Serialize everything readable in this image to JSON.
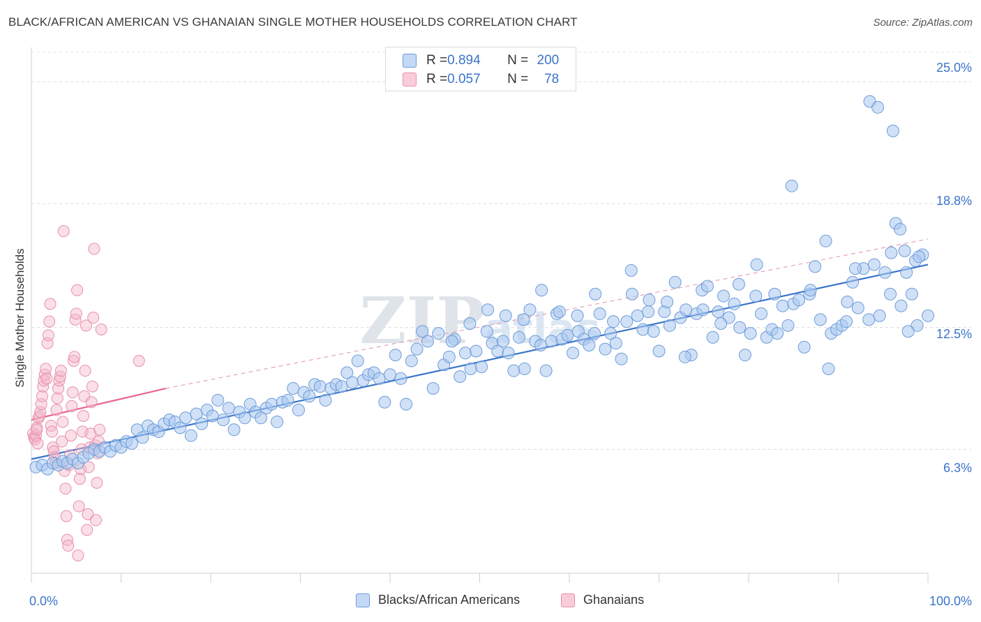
{
  "title": "BLACK/AFRICAN AMERICAN VS GHANAIAN SINGLE MOTHER HOUSEHOLDS CORRELATION CHART",
  "source": "Source: ZipAtlas.com",
  "watermark": "ZIPatlas",
  "legend_top": [
    {
      "r_label": "R = ",
      "r_value": "0.894",
      "n_label": "N = ",
      "n_value": "200",
      "color": "#a9c8f0"
    },
    {
      "r_label": "R = ",
      "r_value": "0.057",
      "n_label": "N = ",
      "n_value": "78",
      "color": "#f5b7c9"
    }
  ],
  "legend_bottom": [
    {
      "label": "Blacks/African Americans",
      "color": "#a9c8f0"
    },
    {
      "label": "Ghanaians",
      "color": "#f5b7c9"
    }
  ],
  "chart_data": {
    "type": "scatter",
    "title": "BLACK/AFRICAN AMERICAN VS GHANAIAN SINGLE MOTHER HOUSEHOLDS CORRELATION CHART",
    "xlabel": "",
    "ylabel": "Single Mother Households",
    "xlim": [
      0,
      100
    ],
    "ylim": [
      0,
      26.5
    ],
    "x_tick_labels": [
      "0.0%",
      "100.0%"
    ],
    "y_ticks": [
      6.3,
      12.5,
      18.8,
      25.0
    ],
    "y_tick_labels": [
      "6.3%",
      "12.5%",
      "18.8%",
      "25.0%"
    ],
    "grid": "horizontal dashed",
    "colors": {
      "blue": "#3a74c9",
      "blue_fill": "#a9c8f0",
      "pink": "#e8668f",
      "pink_fill": "#f5b7c9"
    },
    "series": [
      {
        "name": "Blacks/African Americans",
        "trend": {
          "x": [
            0,
            100
          ],
          "y": [
            5.8,
            15.7
          ],
          "style": "solid"
        },
        "points": [
          [
            0.5,
            5.4
          ],
          [
            1.2,
            5.5
          ],
          [
            1.8,
            5.3
          ],
          [
            2.4,
            5.6
          ],
          [
            3.0,
            5.5
          ],
          [
            3.5,
            5.7
          ],
          [
            4.0,
            5.6
          ],
          [
            4.6,
            5.8
          ],
          [
            5.2,
            5.6
          ],
          [
            5.8,
            5.9
          ],
          [
            6.4,
            6.1
          ],
          [
            7.0,
            6.3
          ],
          [
            7.6,
            6.2
          ],
          [
            8.2,
            6.4
          ],
          [
            8.8,
            6.2
          ],
          [
            9.4,
            6.5
          ],
          [
            10.0,
            6.4
          ],
          [
            10.6,
            6.7
          ],
          [
            11.2,
            6.6
          ],
          [
            11.8,
            7.3
          ],
          [
            12.4,
            6.9
          ],
          [
            13.0,
            7.5
          ],
          [
            13.6,
            7.3
          ],
          [
            14.2,
            7.2
          ],
          [
            14.8,
            7.6
          ],
          [
            15.4,
            7.8
          ],
          [
            16.0,
            7.7
          ],
          [
            16.6,
            7.4
          ],
          [
            17.2,
            7.9
          ],
          [
            17.8,
            7.0
          ],
          [
            18.4,
            8.1
          ],
          [
            19.0,
            7.6
          ],
          [
            19.6,
            8.3
          ],
          [
            20.2,
            8.0
          ],
          [
            20.8,
            8.8
          ],
          [
            21.4,
            7.8
          ],
          [
            22.0,
            8.4
          ],
          [
            22.6,
            7.3
          ],
          [
            23.2,
            8.2
          ],
          [
            23.8,
            7.9
          ],
          [
            24.4,
            8.6
          ],
          [
            25.0,
            8.2
          ],
          [
            25.6,
            7.9
          ],
          [
            26.2,
            8.4
          ],
          [
            26.8,
            8.6
          ],
          [
            27.4,
            7.7
          ],
          [
            28.0,
            8.7
          ],
          [
            28.6,
            8.8
          ],
          [
            29.2,
            9.4
          ],
          [
            29.8,
            8.3
          ],
          [
            30.4,
            9.2
          ],
          [
            31.0,
            9.0
          ],
          [
            31.6,
            9.6
          ],
          [
            32.2,
            9.5
          ],
          [
            32.8,
            8.8
          ],
          [
            33.4,
            9.4
          ],
          [
            34.0,
            9.6
          ],
          [
            34.6,
            9.5
          ],
          [
            35.2,
            10.2
          ],
          [
            35.8,
            9.7
          ],
          [
            36.4,
            10.8
          ],
          [
            37.0,
            9.8
          ],
          [
            37.6,
            10.1
          ],
          [
            38.2,
            10.2
          ],
          [
            38.8,
            9.9
          ],
          [
            39.4,
            8.7
          ],
          [
            40.0,
            10.1
          ],
          [
            40.6,
            11.1
          ],
          [
            41.2,
            9.9
          ],
          [
            41.8,
            8.6
          ],
          [
            42.4,
            10.8
          ],
          [
            43.0,
            11.4
          ],
          [
            43.6,
            12.3
          ],
          [
            44.2,
            11.8
          ],
          [
            44.8,
            9.4
          ],
          [
            45.4,
            12.2
          ],
          [
            46.0,
            10.6
          ],
          [
            46.6,
            11.0
          ],
          [
            47.2,
            11.9
          ],
          [
            47.8,
            10.0
          ],
          [
            48.4,
            11.2
          ],
          [
            49.0,
            10.4
          ],
          [
            49.6,
            11.3
          ],
          [
            50.2,
            10.5
          ],
          [
            50.8,
            12.3
          ],
          [
            51.4,
            11.7
          ],
          [
            52.0,
            11.3
          ],
          [
            52.6,
            11.8
          ],
          [
            53.2,
            11.2
          ],
          [
            53.8,
            10.3
          ],
          [
            54.4,
            12.0
          ],
          [
            55.0,
            10.4
          ],
          [
            55.6,
            13.4
          ],
          [
            56.2,
            11.8
          ],
          [
            56.8,
            11.6
          ],
          [
            57.4,
            10.3
          ],
          [
            58.0,
            11.8
          ],
          [
            58.6,
            13.2
          ],
          [
            59.2,
            11.9
          ],
          [
            59.8,
            12.1
          ],
          [
            60.4,
            11.2
          ],
          [
            61.0,
            12.3
          ],
          [
            61.6,
            11.9
          ],
          [
            62.2,
            11.6
          ],
          [
            62.8,
            12.2
          ],
          [
            63.4,
            13.2
          ],
          [
            64.0,
            11.4
          ],
          [
            64.6,
            12.2
          ],
          [
            65.2,
            11.7
          ],
          [
            65.8,
            10.9
          ],
          [
            66.4,
            12.8
          ],
          [
            67.0,
            14.2
          ],
          [
            67.6,
            13.1
          ],
          [
            68.2,
            12.4
          ],
          [
            68.8,
            13.3
          ],
          [
            69.4,
            12.3
          ],
          [
            70.0,
            11.3
          ],
          [
            70.6,
            13.3
          ],
          [
            71.2,
            12.6
          ],
          [
            71.8,
            14.8
          ],
          [
            72.4,
            13.0
          ],
          [
            73.0,
            13.4
          ],
          [
            73.6,
            11.1
          ],
          [
            74.2,
            13.2
          ],
          [
            74.8,
            14.4
          ],
          [
            75.4,
            14.6
          ],
          [
            76.0,
            12.0
          ],
          [
            76.6,
            13.3
          ],
          [
            77.2,
            14.1
          ],
          [
            77.8,
            13.0
          ],
          [
            78.4,
            13.7
          ],
          [
            79.0,
            12.5
          ],
          [
            79.6,
            11.1
          ],
          [
            80.2,
            12.2
          ],
          [
            80.8,
            14.1
          ],
          [
            81.4,
            13.2
          ],
          [
            82.0,
            12.0
          ],
          [
            82.6,
            12.4
          ],
          [
            83.2,
            12.2
          ],
          [
            83.8,
            13.6
          ],
          [
            84.4,
            12.6
          ],
          [
            85.0,
            13.7
          ],
          [
            85.6,
            13.9
          ],
          [
            86.2,
            11.5
          ],
          [
            86.8,
            14.2
          ],
          [
            87.4,
            15.6
          ],
          [
            88.0,
            12.9
          ],
          [
            88.6,
            16.9
          ],
          [
            89.2,
            12.2
          ],
          [
            89.8,
            12.4
          ],
          [
            90.4,
            12.6
          ],
          [
            91.0,
            13.8
          ],
          [
            91.6,
            14.8
          ],
          [
            92.2,
            13.5
          ],
          [
            92.8,
            15.5
          ],
          [
            93.4,
            12.9
          ],
          [
            94.0,
            15.7
          ],
          [
            94.6,
            13.1
          ],
          [
            95.2,
            15.3
          ],
          [
            95.8,
            14.2
          ],
          [
            96.4,
            17.8
          ],
          [
            97.0,
            13.6
          ],
          [
            97.6,
            15.3
          ],
          [
            98.2,
            14.2
          ],
          [
            98.8,
            12.6
          ],
          [
            99.4,
            16.2
          ],
          [
            100.0,
            13.1
          ],
          [
            96.9,
            17.5
          ],
          [
            97.4,
            16.4
          ],
          [
            98.6,
            15.9
          ],
          [
            93.5,
            24.0
          ],
          [
            94.4,
            23.7
          ],
          [
            96.1,
            22.5
          ],
          [
            99.0,
            16.1
          ],
          [
            97.8,
            12.3
          ],
          [
            84.8,
            19.7
          ],
          [
            80.9,
            15.7
          ],
          [
            78.9,
            14.7
          ],
          [
            82.9,
            14.2
          ],
          [
            86.9,
            14.4
          ],
          [
            90.9,
            12.8
          ],
          [
            88.9,
            10.4
          ],
          [
            91.9,
            15.5
          ],
          [
            95.9,
            16.3
          ],
          [
            76.9,
            12.7
          ],
          [
            74.9,
            13.4
          ],
          [
            72.9,
            11.0
          ],
          [
            70.9,
            13.8
          ],
          [
            68.9,
            13.9
          ],
          [
            66.9,
            15.4
          ],
          [
            64.9,
            12.8
          ],
          [
            62.9,
            14.2
          ],
          [
            60.9,
            13.1
          ],
          [
            58.9,
            13.3
          ],
          [
            56.9,
            14.4
          ],
          [
            54.9,
            12.9
          ],
          [
            52.9,
            13.1
          ],
          [
            50.9,
            13.4
          ],
          [
            48.9,
            12.7
          ],
          [
            46.9,
            11.8
          ]
        ]
      },
      {
        "name": "Ghanaians",
        "trend": {
          "x": [
            0,
            15
          ],
          "y": [
            7.8,
            9.4
          ],
          "style": "solid",
          "extended_dashed_to": [
            100,
            17.0
          ]
        },
        "points": [
          [
            0.2,
            7.1
          ],
          [
            0.3,
            6.9
          ],
          [
            0.4,
            6.8
          ],
          [
            0.5,
            7.0
          ],
          [
            0.6,
            7.4
          ],
          [
            0.7,
            6.6
          ],
          [
            0.8,
            7.9
          ],
          [
            0.9,
            8.0
          ],
          [
            1.0,
            8.2
          ],
          [
            1.1,
            8.6
          ],
          [
            1.2,
            9.0
          ],
          [
            1.3,
            9.5
          ],
          [
            1.4,
            9.8
          ],
          [
            1.5,
            10.1
          ],
          [
            1.6,
            10.4
          ],
          [
            1.7,
            9.9
          ],
          [
            1.8,
            11.7
          ],
          [
            1.9,
            12.1
          ],
          [
            2.0,
            12.8
          ],
          [
            2.1,
            13.7
          ],
          [
            2.2,
            7.5
          ],
          [
            2.3,
            7.2
          ],
          [
            2.4,
            6.4
          ],
          [
            2.5,
            6.2
          ],
          [
            2.6,
            5.9
          ],
          [
            2.7,
            5.6
          ],
          [
            2.8,
            8.3
          ],
          [
            2.9,
            8.9
          ],
          [
            3.0,
            9.4
          ],
          [
            3.1,
            9.8
          ],
          [
            3.2,
            10.0
          ],
          [
            3.3,
            10.3
          ],
          [
            3.4,
            6.7
          ],
          [
            3.5,
            7.7
          ],
          [
            3.6,
            17.4
          ],
          [
            3.7,
            5.2
          ],
          [
            3.8,
            4.3
          ],
          [
            3.9,
            2.9
          ],
          [
            4.0,
            1.7
          ],
          [
            4.1,
            1.4
          ],
          [
            4.2,
            5.5
          ],
          [
            4.3,
            6.0
          ],
          [
            4.4,
            7.0
          ],
          [
            4.5,
            8.5
          ],
          [
            4.6,
            9.2
          ],
          [
            4.7,
            10.8
          ],
          [
            4.8,
            11.0
          ],
          [
            4.9,
            12.9
          ],
          [
            5.0,
            13.2
          ],
          [
            5.1,
            14.4
          ],
          [
            5.2,
            0.9
          ],
          [
            5.3,
            3.4
          ],
          [
            5.4,
            4.8
          ],
          [
            5.5,
            5.3
          ],
          [
            5.6,
            6.3
          ],
          [
            5.7,
            7.2
          ],
          [
            5.8,
            8.0
          ],
          [
            5.9,
            9.0
          ],
          [
            6.0,
            10.3
          ],
          [
            6.1,
            12.6
          ],
          [
            6.2,
            2.2
          ],
          [
            6.3,
            3.0
          ],
          [
            6.4,
            5.4
          ],
          [
            6.5,
            6.4
          ],
          [
            6.6,
            7.1
          ],
          [
            6.7,
            8.7
          ],
          [
            6.8,
            9.5
          ],
          [
            6.9,
            13.0
          ],
          [
            7.0,
            16.5
          ],
          [
            7.1,
            6.5
          ],
          [
            7.2,
            2.7
          ],
          [
            7.3,
            4.6
          ],
          [
            7.4,
            6.1
          ],
          [
            7.5,
            6.7
          ],
          [
            7.6,
            7.3
          ],
          [
            7.8,
            12.4
          ],
          [
            12.0,
            10.8
          ],
          [
            0.6,
            7.3
          ]
        ]
      }
    ]
  }
}
